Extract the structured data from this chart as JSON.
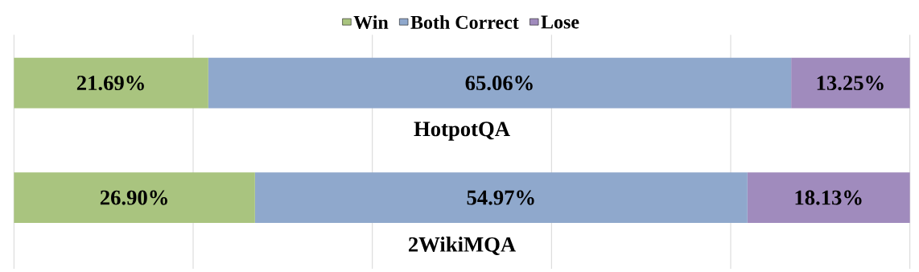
{
  "chart_data": {
    "type": "bar",
    "orientation": "horizontal",
    "stacked": true,
    "categories": [
      "HotpotQA",
      "2WikiMQA"
    ],
    "series": [
      {
        "name": "Win",
        "color": "#a9c47f",
        "values": [
          21.69,
          26.9
        ],
        "value_labels": [
          "21.69%",
          "26.90%"
        ]
      },
      {
        "name": "Both Correct",
        "color": "#8fa8cc",
        "values": [
          65.06,
          54.97
        ],
        "value_labels": [
          "65.06%",
          "54.97%"
        ]
      },
      {
        "name": "Lose",
        "color": "#a08bbd",
        "values": [
          13.25,
          18.13
        ],
        "value_labels": [
          "13.25%",
          "18.13%"
        ]
      }
    ],
    "xlim": [
      0,
      100
    ],
    "xticks": [
      {
        "value": 0,
        "label": null
      },
      {
        "value": 20,
        "label": null
      },
      {
        "value": 40,
        "label": null
      },
      {
        "value": 60,
        "label": null
      },
      {
        "value": 80,
        "label": null
      },
      {
        "value": 100,
        "label": null
      }
    ],
    "grid": "x",
    "legend": "top"
  }
}
